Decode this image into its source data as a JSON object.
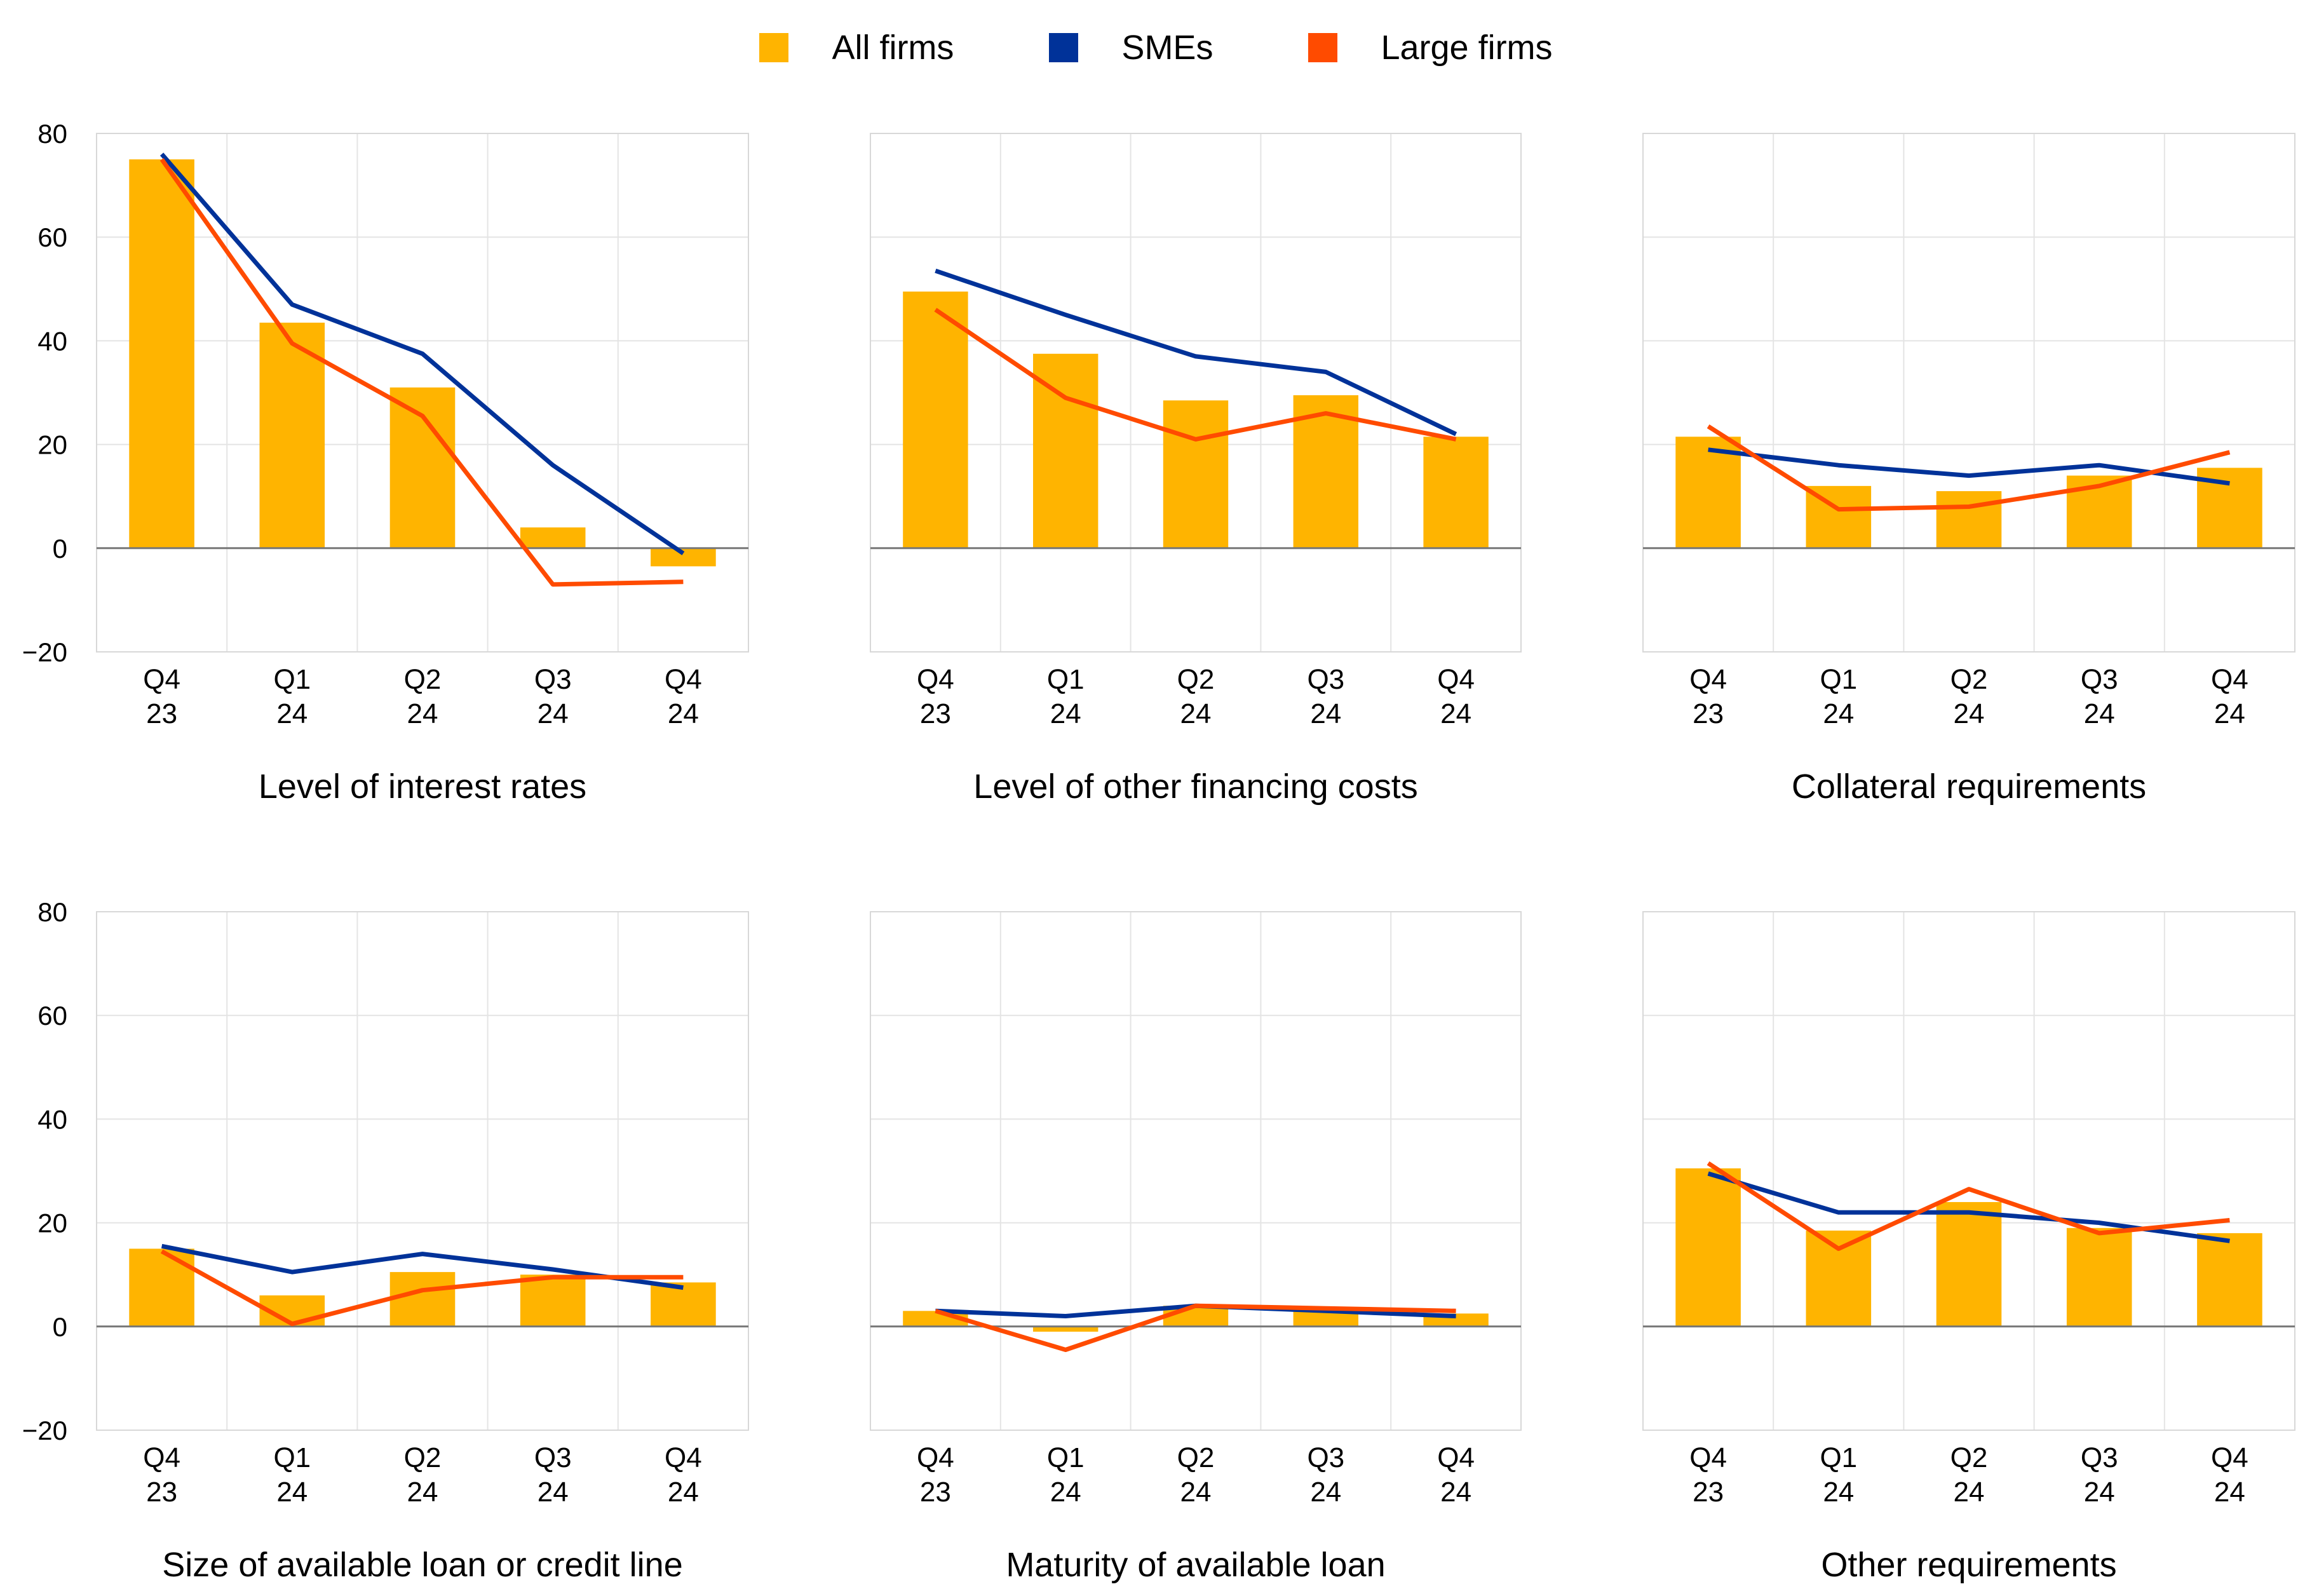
{
  "colors": {
    "all_firms": "#FFB400",
    "smes": "#003299",
    "large_firms": "#FF4B00",
    "grid": "#e4e4e4",
    "zero_line": "#777777",
    "frame": "#d8d8d8"
  },
  "legend": {
    "items": [
      {
        "label": "All firms",
        "color": "#FFB400"
      },
      {
        "label": "SMEs",
        "color": "#003299"
      },
      {
        "label": "Large firms",
        "color": "#FF4B00"
      }
    ]
  },
  "chart_data": [
    {
      "type": "bar",
      "title": "Level of interest rates",
      "categories": [
        [
          "Q4",
          "23"
        ],
        [
          "Q1",
          "24"
        ],
        [
          "Q2",
          "24"
        ],
        [
          "Q3",
          "24"
        ],
        [
          "Q4",
          "24"
        ]
      ],
      "ylim": [
        -20,
        80
      ],
      "yticks": [
        -20,
        0,
        20,
        40,
        60,
        80
      ],
      "series": [
        {
          "name": "All firms",
          "kind": "bar",
          "values": [
            75,
            43.5,
            31,
            4,
            -3.5
          ]
        },
        {
          "name": "SMEs",
          "kind": "line",
          "values": [
            76,
            47,
            37.5,
            16,
            -1
          ]
        },
        {
          "name": "Large firms",
          "kind": "line",
          "values": [
            75,
            39.5,
            25.5,
            -7,
            -6.5
          ]
        }
      ]
    },
    {
      "type": "bar",
      "title": "Level of other financing costs",
      "categories": [
        [
          "Q4",
          "23"
        ],
        [
          "Q1",
          "24"
        ],
        [
          "Q2",
          "24"
        ],
        [
          "Q3",
          "24"
        ],
        [
          "Q4",
          "24"
        ]
      ],
      "ylim": [
        -20,
        80
      ],
      "yticks": [
        -20,
        0,
        20,
        40,
        60,
        80
      ],
      "series": [
        {
          "name": "All firms",
          "kind": "bar",
          "values": [
            49.5,
            37.5,
            28.5,
            29.5,
            21.5
          ]
        },
        {
          "name": "SMEs",
          "kind": "line",
          "values": [
            53.5,
            45,
            37,
            34,
            22
          ]
        },
        {
          "name": "Large firms",
          "kind": "line",
          "values": [
            46,
            29,
            21,
            26,
            21
          ]
        }
      ]
    },
    {
      "type": "bar",
      "title": "Collateral requirements",
      "categories": [
        [
          "Q4",
          "23"
        ],
        [
          "Q1",
          "24"
        ],
        [
          "Q2",
          "24"
        ],
        [
          "Q3",
          "24"
        ],
        [
          "Q4",
          "24"
        ]
      ],
      "ylim": [
        -20,
        80
      ],
      "yticks": [
        -20,
        0,
        20,
        40,
        60,
        80
      ],
      "series": [
        {
          "name": "All firms",
          "kind": "bar",
          "values": [
            21.5,
            12,
            11,
            14,
            15.5
          ]
        },
        {
          "name": "SMEs",
          "kind": "line",
          "values": [
            19,
            16,
            14,
            16,
            12.5
          ]
        },
        {
          "name": "Large firms",
          "kind": "line",
          "values": [
            23.5,
            7.5,
            8,
            12,
            18.5
          ]
        }
      ]
    },
    {
      "type": "bar",
      "title": "Size of available loan or credit line",
      "categories": [
        [
          "Q4",
          "23"
        ],
        [
          "Q1",
          "24"
        ],
        [
          "Q2",
          "24"
        ],
        [
          "Q3",
          "24"
        ],
        [
          "Q4",
          "24"
        ]
      ],
      "ylim": [
        -20,
        80
      ],
      "yticks": [
        -20,
        0,
        20,
        40,
        60,
        80
      ],
      "series": [
        {
          "name": "All firms",
          "kind": "bar",
          "values": [
            15,
            6,
            10.5,
            10,
            8.5
          ]
        },
        {
          "name": "SMEs",
          "kind": "line",
          "values": [
            15.5,
            10.5,
            14,
            11,
            7.5
          ]
        },
        {
          "name": "Large firms",
          "kind": "line",
          "values": [
            14.5,
            0.5,
            7,
            9.5,
            9.5
          ]
        }
      ]
    },
    {
      "type": "bar",
      "title": "Maturity of available loan",
      "categories": [
        [
          "Q4",
          "23"
        ],
        [
          "Q1",
          "24"
        ],
        [
          "Q2",
          "24"
        ],
        [
          "Q3",
          "24"
        ],
        [
          "Q4",
          "24"
        ]
      ],
      "ylim": [
        -20,
        80
      ],
      "yticks": [
        -20,
        0,
        20,
        40,
        60,
        80
      ],
      "series": [
        {
          "name": "All firms",
          "kind": "bar",
          "values": [
            3,
            -1,
            4,
            3.5,
            2.5
          ]
        },
        {
          "name": "SMEs",
          "kind": "line",
          "values": [
            3,
            2,
            4,
            3,
            2
          ]
        },
        {
          "name": "Large firms",
          "kind": "line",
          "values": [
            3,
            -4.5,
            4,
            3.5,
            3
          ]
        }
      ]
    },
    {
      "type": "bar",
      "title": "Other requirements",
      "categories": [
        [
          "Q4",
          "23"
        ],
        [
          "Q1",
          "24"
        ],
        [
          "Q2",
          "24"
        ],
        [
          "Q3",
          "24"
        ],
        [
          "Q4",
          "24"
        ]
      ],
      "ylim": [
        -20,
        80
      ],
      "yticks": [
        -20,
        0,
        20,
        40,
        60,
        80
      ],
      "series": [
        {
          "name": "All firms",
          "kind": "bar",
          "values": [
            30.5,
            18.5,
            24,
            19,
            18
          ]
        },
        {
          "name": "SMEs",
          "kind": "line",
          "values": [
            29.5,
            22,
            22,
            20,
            16.5
          ]
        },
        {
          "name": "Large firms",
          "kind": "line",
          "values": [
            31.5,
            15,
            26.5,
            18,
            20.5
          ]
        }
      ]
    }
  ]
}
